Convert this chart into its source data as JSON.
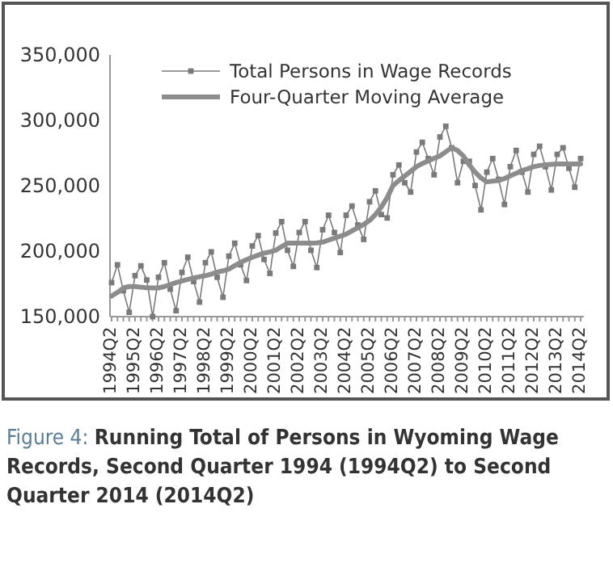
{
  "chart_data": {
    "type": "line",
    "title": "Figure 4: Running Total of Persons in Wyoming Wage Records, Second Quarter 1994 (1994Q2) to Second Quarter 2014 (2014Q2)",
    "categories": [
      "1994Q2",
      null,
      null,
      null,
      "1995Q2",
      null,
      null,
      null,
      "1996Q2",
      null,
      null,
      null,
      "1997Q2",
      null,
      null,
      null,
      "1998Q2",
      null,
      null,
      null,
      "1999Q2",
      null,
      null,
      null,
      "2000Q2",
      null,
      null,
      null,
      "2001Q2",
      null,
      null,
      null,
      "2002Q2",
      null,
      null,
      null,
      "2003Q2",
      null,
      null,
      null,
      "2004Q2",
      null,
      null,
      null,
      "2005Q2",
      null,
      null,
      null,
      "2006Q2",
      null,
      null,
      null,
      "2007Q2",
      null,
      null,
      null,
      "2008Q2",
      null,
      null,
      null,
      "2009Q2",
      null,
      null,
      null,
      "2010Q2",
      null,
      null,
      null,
      "2011Q2",
      null,
      null,
      null,
      "2012Q2",
      null,
      null,
      null,
      "2013Q2",
      null,
      null,
      null,
      "2014Q2"
    ],
    "series": [
      {
        "name": "Total Persons in Wage Records",
        "color": "#7a7a7a",
        "marker": "square",
        "values": [
          176000,
          189600,
          169800,
          153300,
          181300,
          188800,
          178000,
          150000,
          180100,
          191200,
          171000,
          154500,
          183800,
          195400,
          176800,
          161100,
          191200,
          199500,
          180100,
          164800,
          196200,
          206100,
          189600,
          177600,
          204000,
          211900,
          193700,
          183000,
          213900,
          222600,
          200700,
          188400,
          214300,
          222600,
          200700,
          187500,
          216400,
          227500,
          214300,
          199000,
          227500,
          234500,
          220000,
          209000,
          237800,
          246100,
          228000,
          225400,
          258400,
          265900,
          252300,
          245200,
          275800,
          283200,
          270800,
          258400,
          287300,
          295500,
          279000,
          252300,
          268700,
          268700,
          250200,
          231600,
          260400,
          270800,
          254900,
          235700,
          264600,
          277000,
          260400,
          245200,
          274000,
          280200,
          264600,
          246800,
          274000,
          279000,
          263400,
          248900,
          270800
        ]
      },
      {
        "name": "Four-Quarter Moving Average",
        "color": "#8c8c8c",
        "marker": "none",
        "values": [
          165700,
          168500,
          171900,
          173000,
          173000,
          172500,
          172000,
          171900,
          171900,
          173000,
          174500,
          176000,
          177200,
          178500,
          179500,
          180500,
          181300,
          182500,
          184000,
          185000,
          186300,
          189000,
          191500,
          193500,
          195400,
          197000,
          198500,
          199500,
          200700,
          203500,
          206100,
          206200,
          206200,
          206200,
          206200,
          206300,
          206900,
          208500,
          210000,
          211500,
          213000,
          215500,
          218000,
          220500,
          223400,
          228000,
          233700,
          241000,
          250200,
          254000,
          257500,
          261000,
          264600,
          267000,
          269000,
          271000,
          272800,
          276000,
          279000,
          277000,
          272800,
          266000,
          260400,
          256000,
          253000,
          253500,
          254000,
          255500,
          257600,
          259500,
          261700,
          263000,
          264600,
          265500,
          266000,
          266300,
          266600,
          266600,
          266600,
          266600,
          266600
        ]
      }
    ],
    "ylim": [
      150000,
      350000
    ],
    "yticks": [
      {
        "value": 150000,
        "label": "150,000"
      },
      {
        "value": 200000,
        "label": "200,000"
      },
      {
        "value": 250000,
        "label": "250,000"
      },
      {
        "value": 300000,
        "label": "300,000"
      },
      {
        "value": 350000,
        "label": "350,000"
      }
    ],
    "legend": "top",
    "grid": false
  }
}
